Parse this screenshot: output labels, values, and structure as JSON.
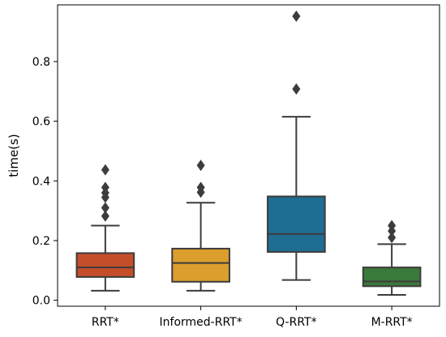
{
  "chart_data": {
    "type": "box",
    "title": "",
    "xlabel": "",
    "ylabel": "time(s)",
    "ylim": [
      -0.02,
      0.99
    ],
    "yticks": [
      0.0,
      0.2,
      0.4,
      0.6,
      0.8
    ],
    "ytick_labels": [
      "0.0",
      "0.2",
      "0.4",
      "0.6",
      "0.8"
    ],
    "grid": false,
    "legend": "none",
    "categories": [
      "RRT*",
      "Informed-RRT*",
      "Q-RRT*",
      "M-RRT*"
    ],
    "boxes": [
      {
        "category": "RRT*",
        "color": "#c44e2a",
        "whisker_low": 0.032,
        "q1": 0.078,
        "median": 0.11,
        "q3": 0.158,
        "whisker_high": 0.25,
        "outliers": [
          0.282,
          0.31,
          0.345,
          0.36,
          0.378,
          0.437
        ]
      },
      {
        "category": "Informed-RRT*",
        "color": "#dc9e2d",
        "whisker_low": 0.032,
        "q1": 0.062,
        "median": 0.125,
        "q3": 0.173,
        "whisker_high": 0.327,
        "outliers": [
          0.362,
          0.378,
          0.452
        ]
      },
      {
        "category": "Q-RRT*",
        "color": "#1f6d92",
        "whisker_low": 0.068,
        "q1": 0.162,
        "median": 0.222,
        "q3": 0.348,
        "whisker_high": 0.615,
        "outliers": [
          0.708,
          0.952
        ]
      },
      {
        "category": "M-RRT*",
        "color": "#3a7a3b",
        "whisker_low": 0.018,
        "q1": 0.047,
        "median": 0.063,
        "q3": 0.11,
        "whisker_high": 0.188,
        "outliers": [
          0.21,
          0.232,
          0.25
        ]
      }
    ]
  }
}
